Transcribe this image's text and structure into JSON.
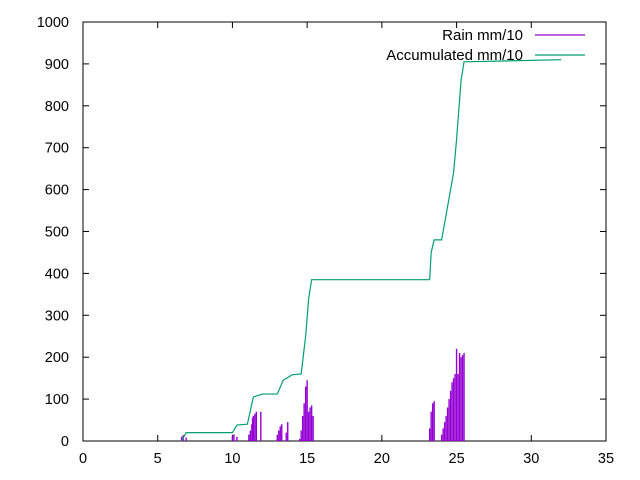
{
  "chart_data": {
    "type": "line",
    "x_range": [
      0,
      35
    ],
    "y_range": [
      0,
      1000
    ],
    "x_ticks": [
      "0",
      "5",
      "10",
      "15",
      "20",
      "25",
      "30",
      "35"
    ],
    "y_ticks": [
      "0",
      "100",
      "200",
      "300",
      "400",
      "500",
      "600",
      "700",
      "800",
      "900",
      "1000"
    ],
    "grid": false,
    "legend_position": "top-right",
    "series": [
      {
        "name": "Rain mm/10",
        "style": "impulses",
        "color": "#9400d3",
        "points": [
          [
            6.6,
            10
          ],
          [
            6.7,
            14
          ],
          [
            6.9,
            8
          ],
          [
            10.0,
            12
          ],
          [
            10.1,
            16
          ],
          [
            10.3,
            10
          ],
          [
            11.1,
            15
          ],
          [
            11.2,
            25
          ],
          [
            11.3,
            40
          ],
          [
            11.35,
            55
          ],
          [
            11.4,
            60
          ],
          [
            11.5,
            65
          ],
          [
            11.6,
            70
          ],
          [
            11.9,
            70
          ],
          [
            13.0,
            15
          ],
          [
            13.1,
            25
          ],
          [
            13.2,
            35
          ],
          [
            13.3,
            40
          ],
          [
            13.6,
            20
          ],
          [
            13.7,
            45
          ],
          [
            14.5,
            5
          ],
          [
            14.6,
            25
          ],
          [
            14.7,
            60
          ],
          [
            14.8,
            90
          ],
          [
            14.9,
            130
          ],
          [
            15.0,
            145
          ],
          [
            15.1,
            70
          ],
          [
            15.2,
            80
          ],
          [
            15.3,
            85
          ],
          [
            15.4,
            60
          ],
          [
            23.2,
            30
          ],
          [
            23.3,
            70
          ],
          [
            23.4,
            90
          ],
          [
            23.5,
            95
          ],
          [
            24.0,
            15
          ],
          [
            24.1,
            30
          ],
          [
            24.2,
            45
          ],
          [
            24.3,
            60
          ],
          [
            24.4,
            80
          ],
          [
            24.5,
            100
          ],
          [
            24.6,
            120
          ],
          [
            24.7,
            140
          ],
          [
            24.8,
            150
          ],
          [
            24.9,
            160
          ],
          [
            25.0,
            220
          ],
          [
            25.1,
            160
          ],
          [
            25.2,
            210
          ],
          [
            25.3,
            200
          ],
          [
            25.4,
            205
          ],
          [
            25.5,
            210
          ]
        ]
      },
      {
        "name": "Accumulated mm/10",
        "style": "lines",
        "color": "#009e73",
        "points": [
          [
            6.6,
            0
          ],
          [
            6.9,
            20
          ],
          [
            10.0,
            20
          ],
          [
            10.3,
            38
          ],
          [
            11.0,
            40
          ],
          [
            11.4,
            105
          ],
          [
            12.0,
            112
          ],
          [
            13.0,
            112
          ],
          [
            13.4,
            145
          ],
          [
            14.0,
            158
          ],
          [
            14.6,
            160
          ],
          [
            14.9,
            250
          ],
          [
            15.1,
            340
          ],
          [
            15.3,
            385
          ],
          [
            23.2,
            385
          ],
          [
            23.3,
            450
          ],
          [
            23.5,
            480
          ],
          [
            24.0,
            480
          ],
          [
            24.2,
            520
          ],
          [
            24.5,
            580
          ],
          [
            24.8,
            640
          ],
          [
            25.0,
            720
          ],
          [
            25.3,
            860
          ],
          [
            25.5,
            905
          ],
          [
            32.0,
            910
          ]
        ]
      }
    ]
  }
}
